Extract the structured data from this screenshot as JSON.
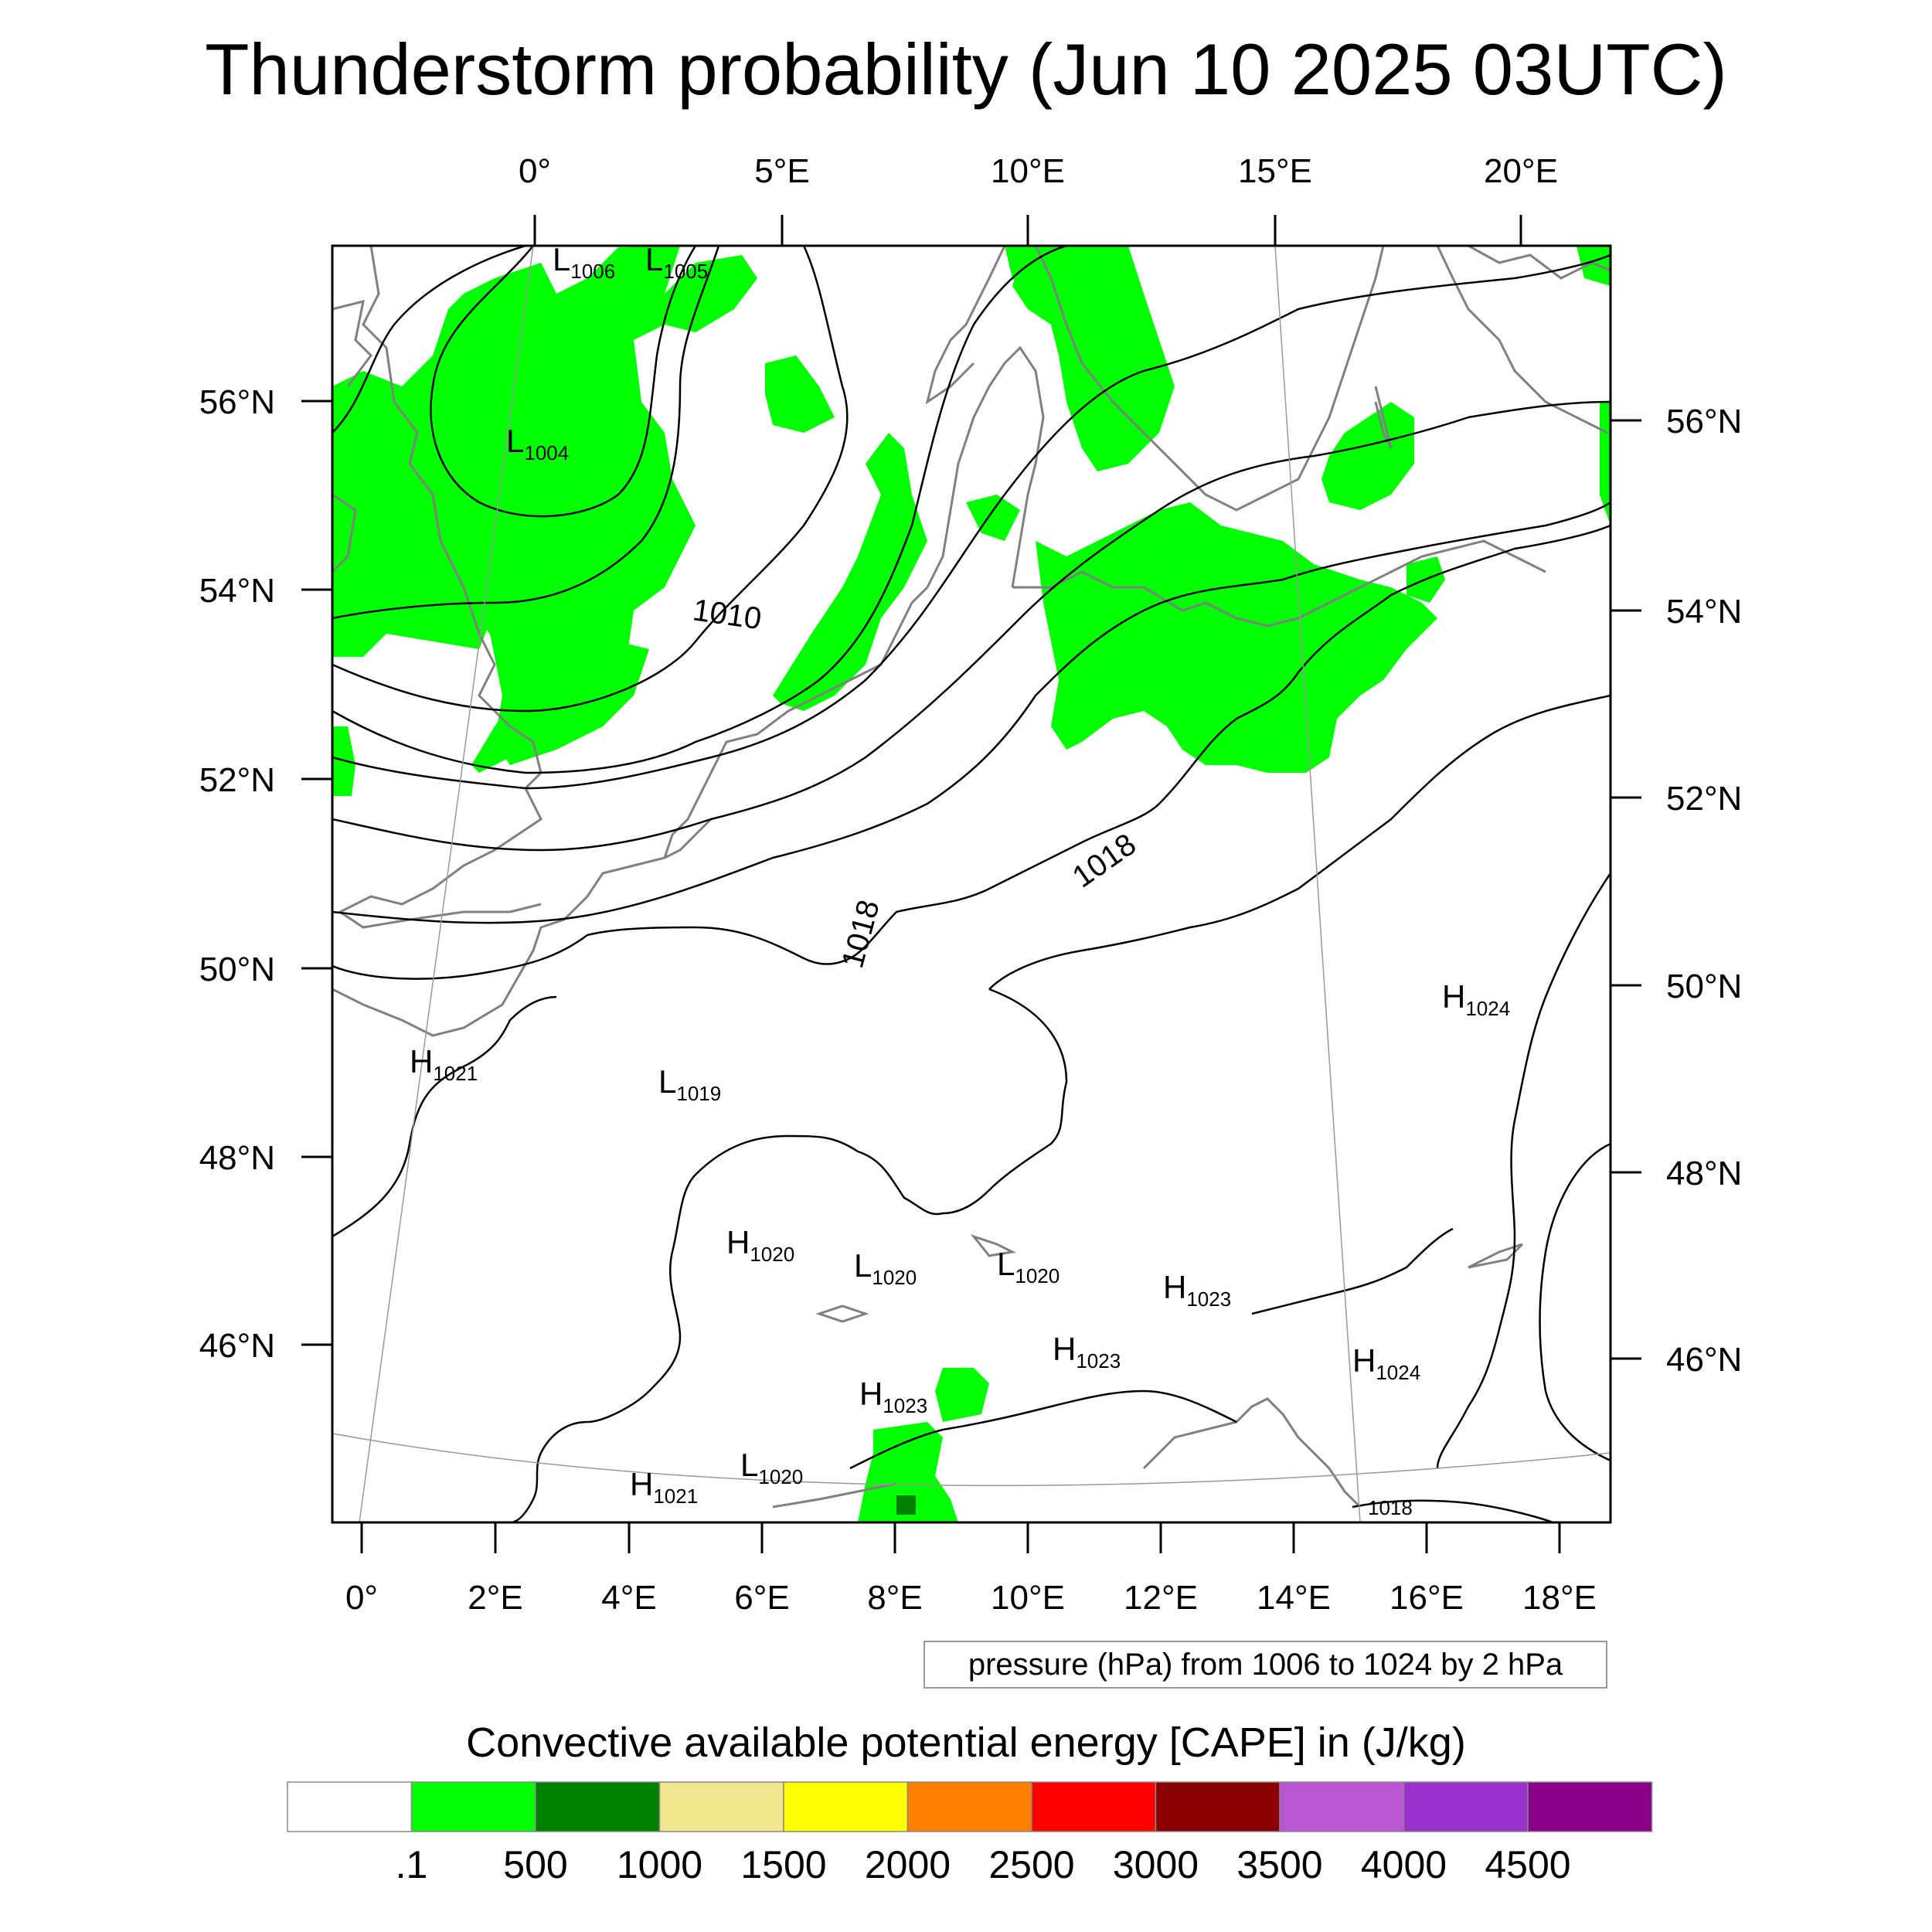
{
  "title": "Thunderstorm probability (Jun 10 2025 03UTC)",
  "top_lon_labels": [
    "0°",
    "5°E",
    "10°E",
    "15°E",
    "20°E"
  ],
  "bottom_lon_labels": [
    "0°",
    "2°E",
    "4°E",
    "6°E",
    "8°E",
    "10°E",
    "12°E",
    "14°E",
    "16°E",
    "18°E"
  ],
  "left_lat_labels": [
    "56°N",
    "54°N",
    "52°N",
    "50°N",
    "48°N",
    "46°N"
  ],
  "right_lat_labels": [
    "56°N",
    "54°N",
    "52°N",
    "50°N",
    "48°N",
    "46°N"
  ],
  "pressure_note": "pressure (hPa) from 1006 to 1024 by 2 hPa",
  "colorbar": {
    "title": "Convective available potential energy [CAPE] in (J/kg)",
    "colors": [
      "#ffffff",
      "#00ff00",
      "#008000",
      "#f0e68c",
      "#ffff00",
      "#ff8000",
      "#ff0000",
      "#8b0000",
      "#ba55d3",
      "#9932cc",
      "#8b008b"
    ],
    "labels": [
      ".1",
      "500",
      "1000",
      "1500",
      "2000",
      "2500",
      "3000",
      "3500",
      "4000",
      "4500"
    ]
  },
  "colors": {
    "cape_green": "#00ff00",
    "dark_green": "#008000",
    "coast": "#808080",
    "isobar": "#000000"
  },
  "contour_labels": [
    "1010",
    "1018",
    "1018",
    "1018"
  ],
  "pressure_centers": [
    {
      "type": "L",
      "value": "1006"
    },
    {
      "type": "L",
      "value": "1005"
    },
    {
      "type": "L",
      "value": "1004"
    },
    {
      "type": "H",
      "value": "1021"
    },
    {
      "type": "L",
      "value": "1019"
    },
    {
      "type": "H",
      "value": "1024"
    },
    {
      "type": "H",
      "value": "1020"
    },
    {
      "type": "L",
      "value": "1020"
    },
    {
      "type": "L",
      "value": "1020"
    },
    {
      "type": "H",
      "value": "1023"
    },
    {
      "type": "H",
      "value": "1023"
    },
    {
      "type": "H",
      "value": "1023"
    },
    {
      "type": "H",
      "value": "1024"
    },
    {
      "type": "L",
      "value": "1020"
    },
    {
      "type": "H",
      "value": "1021"
    }
  ]
}
